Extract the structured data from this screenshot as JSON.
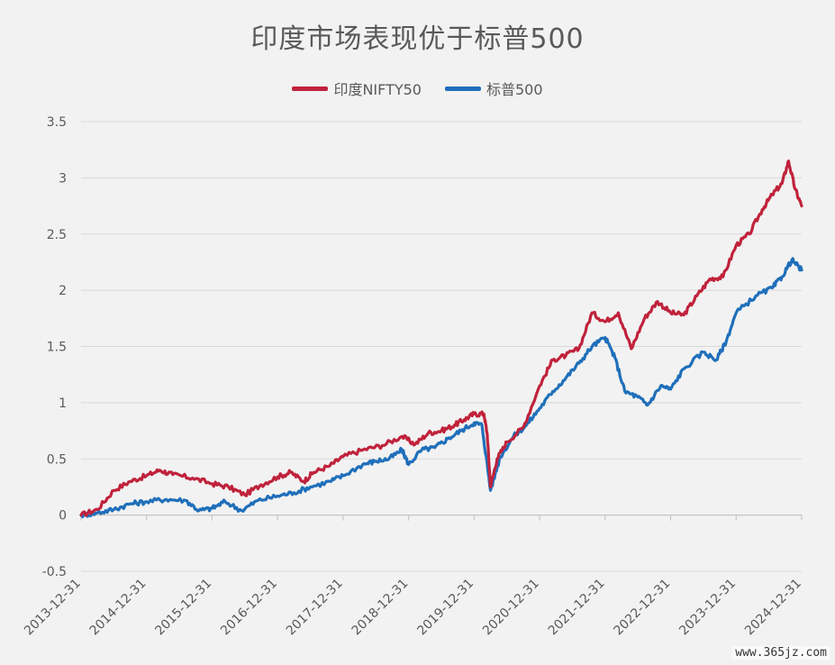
{
  "chart_data": {
    "type": "line",
    "title": "印度市场表现优于标普500",
    "xlabel": "",
    "ylabel": "",
    "ylim": [
      -0.5,
      3.5
    ],
    "yticks": [
      "3.5",
      "3",
      "2.5",
      "2",
      "1.5",
      "1",
      "0.5",
      "0",
      "-0.5"
    ],
    "ytick_values": [
      3.5,
      3,
      2.5,
      2,
      1.5,
      1,
      0.5,
      0,
      -0.5
    ],
    "xticks": [
      "2013-12-31",
      "2014-12-31",
      "2015-12-31",
      "2016-12-31",
      "2017-12-31",
      "2018-12-31",
      "2019-12-31",
      "2020-12-31",
      "2021-12-31",
      "2022-12-31",
      "2023-12-31",
      "2024-12-31"
    ],
    "xlim": [
      2013.0,
      2024.0
    ],
    "grid": true,
    "legend": "top-center",
    "series": [
      {
        "name": "印度NIFTY50",
        "color": "#c0223b",
        "points": [
          [
            2013.0,
            0.0
          ],
          [
            2013.25,
            0.05
          ],
          [
            2013.5,
            0.22
          ],
          [
            2013.75,
            0.3
          ],
          [
            2014.0,
            0.35
          ],
          [
            2014.2,
            0.4
          ],
          [
            2014.4,
            0.36
          ],
          [
            2014.7,
            0.33
          ],
          [
            2015.0,
            0.28
          ],
          [
            2015.25,
            0.25
          ],
          [
            2015.5,
            0.18
          ],
          [
            2015.75,
            0.27
          ],
          [
            2016.0,
            0.34
          ],
          [
            2016.2,
            0.38
          ],
          [
            2016.4,
            0.3
          ],
          [
            2016.55,
            0.38
          ],
          [
            2016.8,
            0.44
          ],
          [
            2017.0,
            0.52
          ],
          [
            2017.3,
            0.58
          ],
          [
            2017.6,
            0.62
          ],
          [
            2017.9,
            0.7
          ],
          [
            2018.1,
            0.63
          ],
          [
            2018.3,
            0.73
          ],
          [
            2018.5,
            0.75
          ],
          [
            2018.7,
            0.8
          ],
          [
            2018.85,
            0.85
          ],
          [
            2019.0,
            0.9
          ],
          [
            2019.15,
            0.9
          ],
          [
            2019.2,
            0.72
          ],
          [
            2019.25,
            0.25
          ],
          [
            2019.35,
            0.5
          ],
          [
            2019.5,
            0.65
          ],
          [
            2019.75,
            0.78
          ],
          [
            2020.0,
            1.15
          ],
          [
            2020.2,
            1.38
          ],
          [
            2020.4,
            1.42
          ],
          [
            2020.6,
            1.48
          ],
          [
            2020.8,
            1.8
          ],
          [
            2021.0,
            1.72
          ],
          [
            2021.2,
            1.8
          ],
          [
            2021.4,
            1.48
          ],
          [
            2021.6,
            1.75
          ],
          [
            2021.8,
            1.9
          ],
          [
            2022.0,
            1.8
          ],
          [
            2022.2,
            1.78
          ],
          [
            2022.4,
            1.95
          ],
          [
            2022.6,
            2.1
          ],
          [
            2022.8,
            2.12
          ],
          [
            2023.0,
            2.4
          ],
          [
            2023.2,
            2.5
          ],
          [
            2023.4,
            2.72
          ],
          [
            2023.55,
            2.85
          ],
          [
            2023.7,
            2.95
          ],
          [
            2023.8,
            3.15
          ],
          [
            2023.9,
            2.9
          ],
          [
            2024.0,
            2.75
          ]
        ]
      },
      {
        "name": "标普500",
        "color": "#1f6fba",
        "points": [
          [
            2013.0,
            0.0
          ],
          [
            2013.25,
            0.02
          ],
          [
            2013.5,
            0.05
          ],
          [
            2013.75,
            0.1
          ],
          [
            2014.0,
            0.12
          ],
          [
            2014.3,
            0.14
          ],
          [
            2014.6,
            0.13
          ],
          [
            2014.8,
            0.04
          ],
          [
            2015.0,
            0.06
          ],
          [
            2015.2,
            0.12
          ],
          [
            2015.45,
            0.04
          ],
          [
            2015.7,
            0.13
          ],
          [
            2016.0,
            0.17
          ],
          [
            2016.25,
            0.2
          ],
          [
            2016.5,
            0.25
          ],
          [
            2016.8,
            0.3
          ],
          [
            2017.0,
            0.35
          ],
          [
            2017.3,
            0.45
          ],
          [
            2017.5,
            0.48
          ],
          [
            2017.7,
            0.5
          ],
          [
            2017.9,
            0.58
          ],
          [
            2018.0,
            0.45
          ],
          [
            2018.2,
            0.58
          ],
          [
            2018.4,
            0.6
          ],
          [
            2018.6,
            0.68
          ],
          [
            2018.8,
            0.75
          ],
          [
            2019.0,
            0.82
          ],
          [
            2019.12,
            0.8
          ],
          [
            2019.25,
            0.22
          ],
          [
            2019.4,
            0.52
          ],
          [
            2019.6,
            0.7
          ],
          [
            2019.8,
            0.8
          ],
          [
            2020.0,
            0.95
          ],
          [
            2020.2,
            1.1
          ],
          [
            2020.4,
            1.22
          ],
          [
            2020.6,
            1.35
          ],
          [
            2020.8,
            1.5
          ],
          [
            2021.0,
            1.58
          ],
          [
            2021.15,
            1.4
          ],
          [
            2021.3,
            1.1
          ],
          [
            2021.5,
            1.05
          ],
          [
            2021.65,
            0.98
          ],
          [
            2021.85,
            1.15
          ],
          [
            2022.0,
            1.12
          ],
          [
            2022.2,
            1.3
          ],
          [
            2022.5,
            1.45
          ],
          [
            2022.7,
            1.38
          ],
          [
            2022.85,
            1.55
          ],
          [
            2023.0,
            1.8
          ],
          [
            2023.3,
            1.95
          ],
          [
            2023.55,
            2.02
          ],
          [
            2023.7,
            2.12
          ],
          [
            2023.85,
            2.27
          ],
          [
            2024.0,
            2.18
          ]
        ]
      }
    ]
  },
  "watermark": "www.365jz.com"
}
